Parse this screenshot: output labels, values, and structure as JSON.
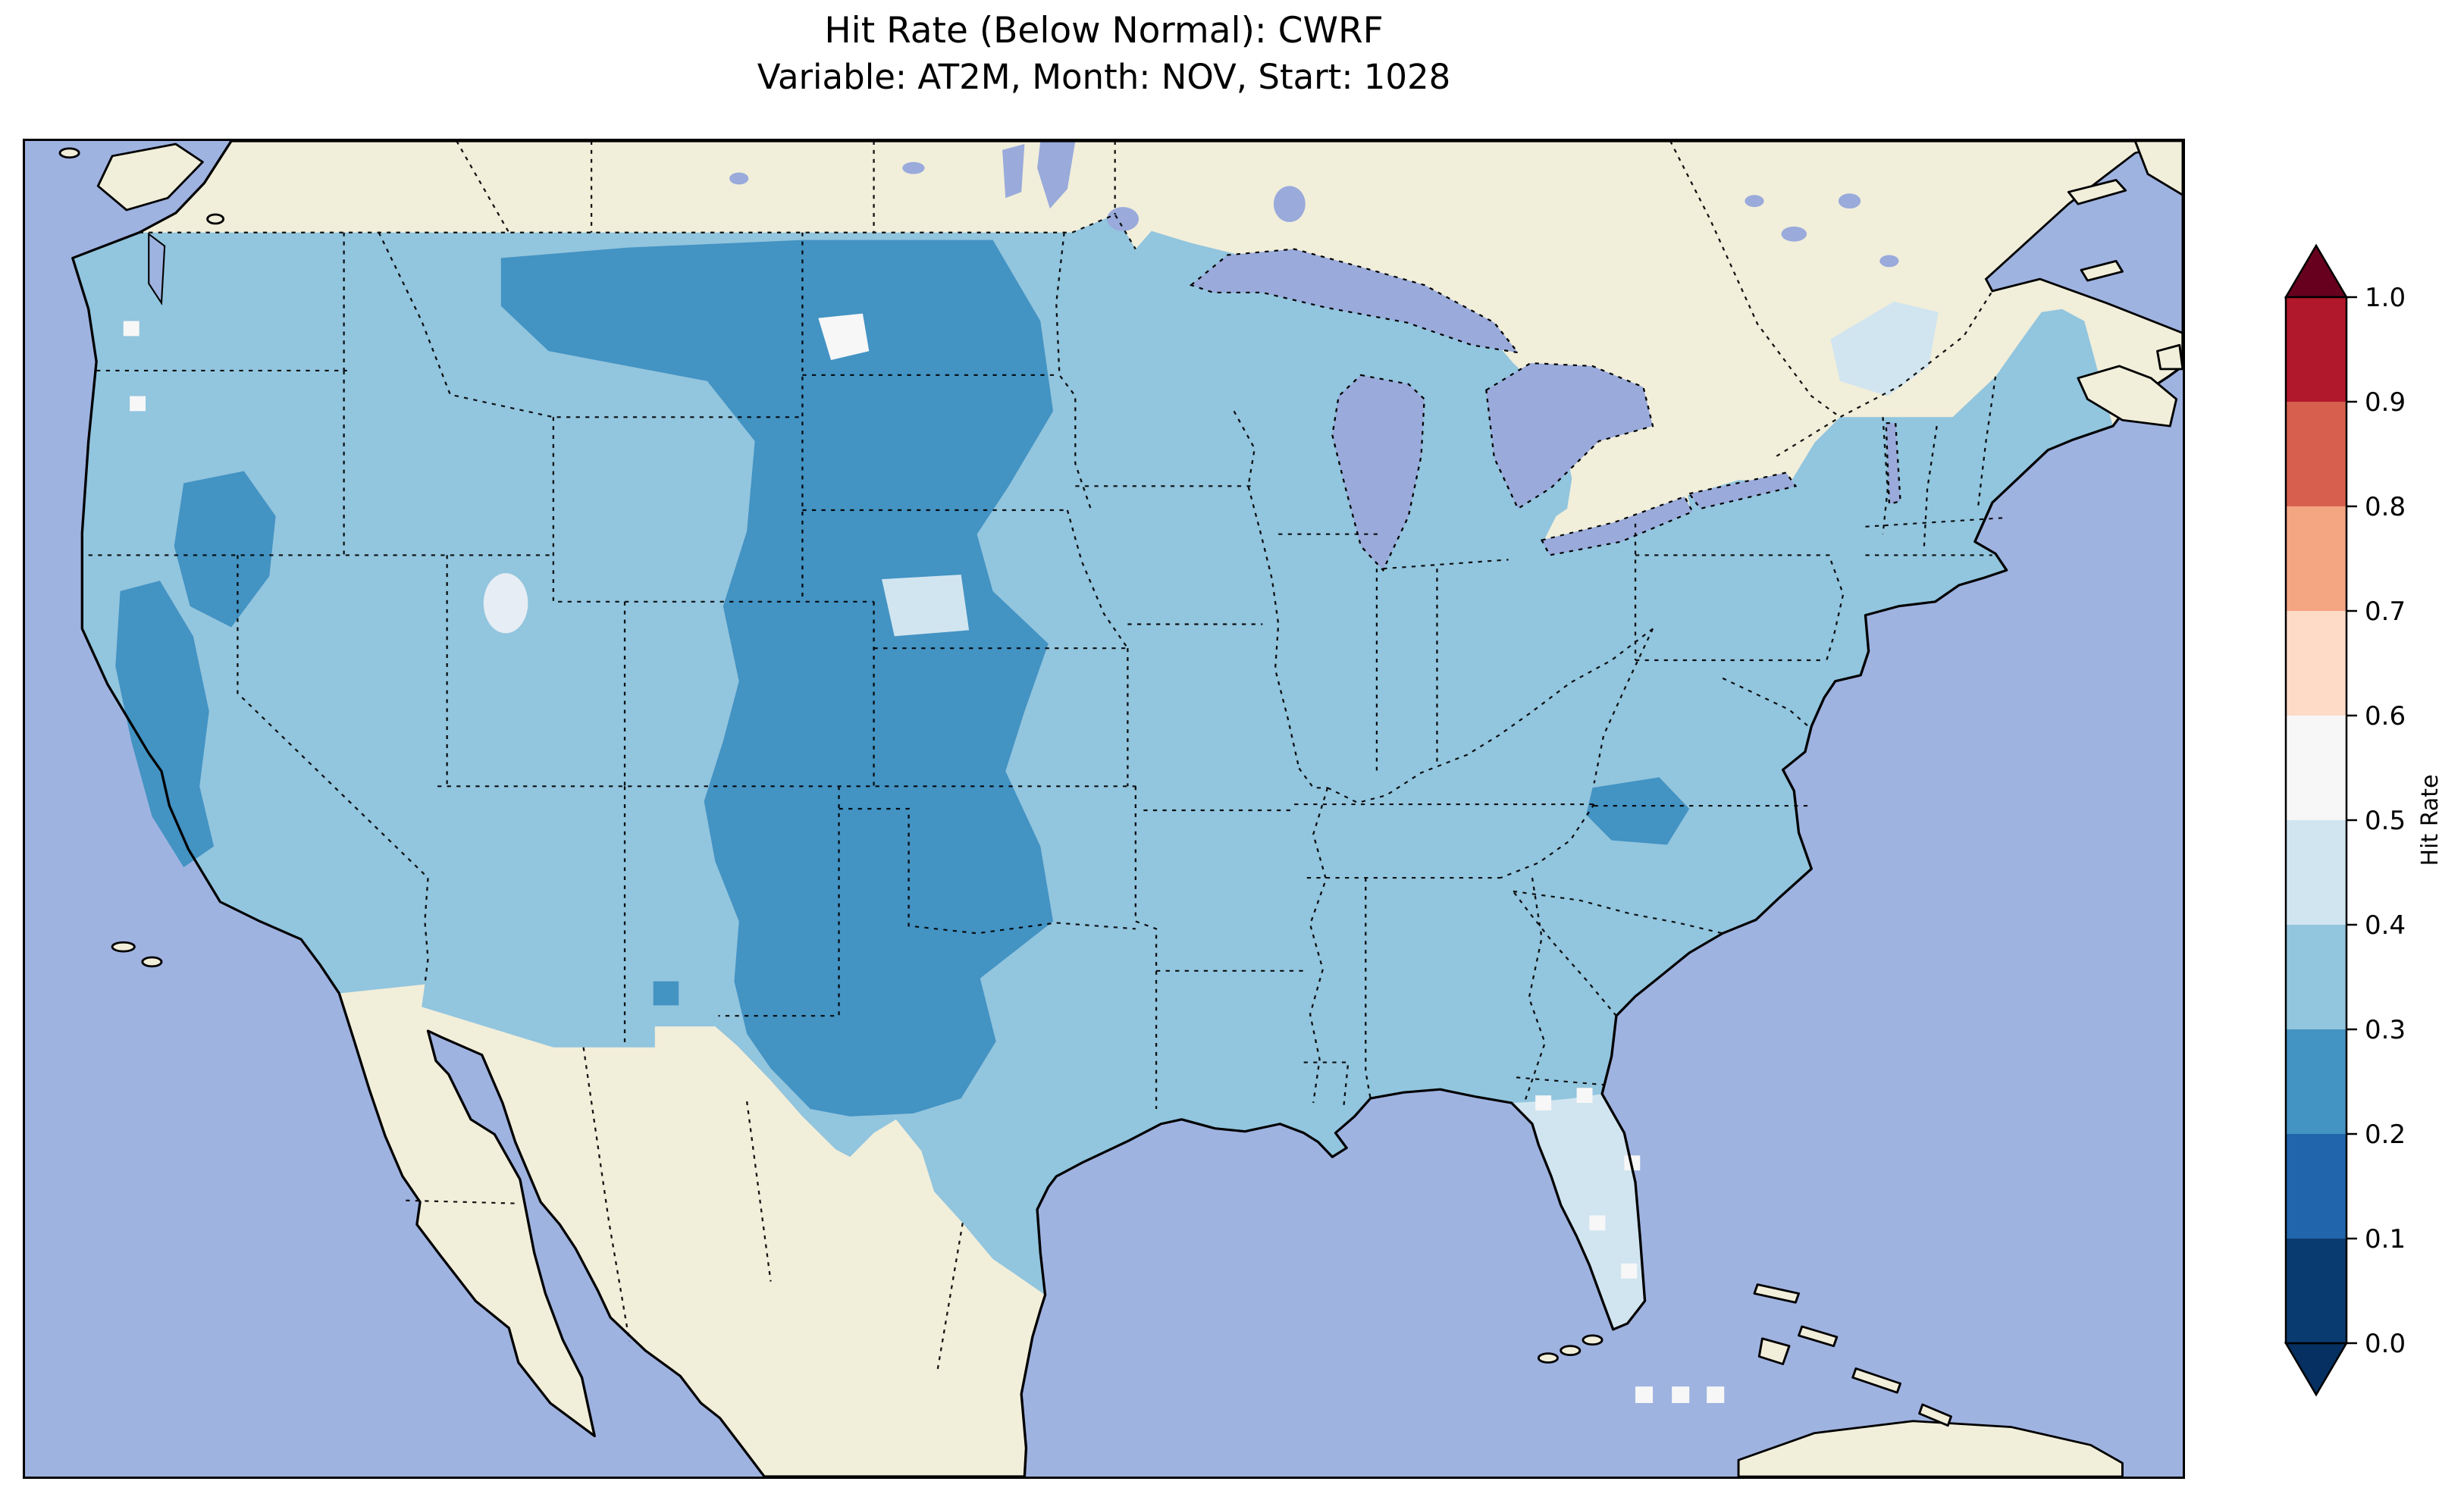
{
  "figure": {
    "title_line1": "Hit Rate (Below Normal): CWRF",
    "title_line2": "Variable: AT2M, Month: NOV, Start: 1028"
  },
  "chart_data": {
    "type": "heatmap",
    "subtype": "geographic choropleth map of CONUS (cartopy/matplotlib style)",
    "title": "Hit Rate (Below Normal): CWRF",
    "subtitle": "Variable: AT2M, Month: NOV, Start: 1028",
    "metric": "Hit Rate (Below Normal)",
    "model": "CWRF",
    "variable": "AT2M",
    "month": "NOV",
    "start": "1028",
    "colorbar": {
      "label": "Hit Rate",
      "orientation": "vertical",
      "extend": "both",
      "colormap": "RdBu_r (discrete, 10 bins of 0.1)",
      "ticks": [
        0.0,
        0.1,
        0.2,
        0.3,
        0.4,
        0.5,
        0.6,
        0.7,
        0.8,
        0.9,
        1.0
      ],
      "tick_labels": [
        "0.0",
        "0.1",
        "0.2",
        "0.3",
        "0.4",
        "0.5",
        "0.6",
        "0.7",
        "0.8",
        "0.9",
        "1.0"
      ],
      "bin_colors_low_to_high": [
        "#0a3b70",
        "#2166ac",
        "#4393c3",
        "#92c5de",
        "#d1e5f0",
        "#f7f7f7",
        "#fddbc7",
        "#f4a582",
        "#d6604d",
        "#b2182b"
      ],
      "under_color": "#053061",
      "over_color": "#67001f"
    },
    "map_colors": {
      "ocean": "#9fb3e1",
      "land_outside_us": "#f1eeda",
      "lakes": "#99aadb",
      "coastline": "#000000",
      "state_borders": "dotted black"
    },
    "observed_regions": [
      {
        "region": "Most of CONUS (default)",
        "hit_rate_bin": "0.3-0.4"
      },
      {
        "region": "Northern / central Great Plains: E Montana, W North Dakota, W South Dakota, W Nebraska, E Colorado, W Kansas, W Oklahoma, Texas panhandle, E New Mexico",
        "hit_rate_bin": "0.2-0.3"
      },
      {
        "region": "Sierra Nevada / central California band",
        "hit_rate_bin": "0.2-0.3"
      },
      {
        "region": "NE California / NW Nevada patch",
        "hit_rate_bin": "0.2-0.3"
      },
      {
        "region": "Western North Carolina / southern Appalachians patch",
        "hit_rate_bin": "0.2-0.3"
      },
      {
        "region": "Florida peninsula",
        "hit_rate_bin": "0.4-0.5 with scattered 0.5-0.6 cells"
      },
      {
        "region": "Northern New England / upstate New York patch",
        "hit_rate_bin": "0.4-0.5"
      },
      {
        "region": "Small spot central North Dakota",
        "hit_rate_bin": "0.4-0.6 (light)"
      },
      {
        "region": "Small patch central South Dakota / Nebraska border",
        "hit_rate_bin": "0.4-0.5"
      },
      {
        "region": "Scattered single cells coastal Washington / Oregon and south of Florida",
        "hit_rate_bin": "0.5-0.6 (near white)"
      }
    ]
  }
}
